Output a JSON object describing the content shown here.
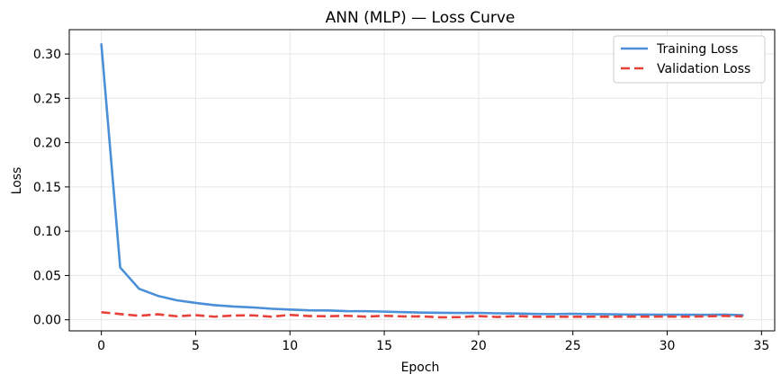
{
  "chart_data": {
    "type": "line",
    "title": "ANN (MLP) — Loss Curve",
    "xlabel": "Epoch",
    "ylabel": "Loss",
    "xlim": [
      -1.7,
      35.7
    ],
    "ylim": [
      -0.0125,
      0.3275
    ],
    "x_ticks": [
      0,
      5,
      10,
      15,
      20,
      25,
      30,
      35
    ],
    "y_ticks": [
      0.0,
      0.05,
      0.1,
      0.15,
      0.2,
      0.25,
      0.3
    ],
    "y_tick_labels": [
      "0.00",
      "0.05",
      "0.10",
      "0.15",
      "0.20",
      "0.25",
      "0.30"
    ],
    "grid": true,
    "legend_position": "top-right",
    "x": [
      0,
      1,
      2,
      3,
      4,
      5,
      6,
      7,
      8,
      9,
      10,
      11,
      12,
      13,
      14,
      15,
      16,
      17,
      18,
      19,
      20,
      21,
      22,
      23,
      24,
      25,
      26,
      27,
      28,
      29,
      30,
      31,
      32,
      33,
      34
    ],
    "series": [
      {
        "name": "Training Loss",
        "color": "#4a8fd8",
        "style": "solid",
        "values": [
          0.311,
          0.059,
          0.035,
          0.027,
          0.022,
          0.019,
          0.0165,
          0.015,
          0.014,
          0.0125,
          0.0115,
          0.0107,
          0.0105,
          0.0098,
          0.0097,
          0.0092,
          0.0086,
          0.0081,
          0.0079,
          0.0077,
          0.0078,
          0.0073,
          0.0071,
          0.0066,
          0.0064,
          0.0067,
          0.0063,
          0.0062,
          0.0059,
          0.0058,
          0.0057,
          0.0057,
          0.0056,
          0.0058,
          0.0052
        ]
      },
      {
        "name": "Validation Loss",
        "color": "#e8413a",
        "style": "dashed",
        "values": [
          0.0085,
          0.0065,
          0.0045,
          0.0062,
          0.004,
          0.0052,
          0.0035,
          0.0048,
          0.005,
          0.0035,
          0.0055,
          0.0042,
          0.004,
          0.0045,
          0.0036,
          0.0045,
          0.0038,
          0.0038,
          0.0028,
          0.003,
          0.0042,
          0.0032,
          0.0042,
          0.0034,
          0.0035,
          0.0034,
          0.0035,
          0.0034,
          0.0036,
          0.0035,
          0.0037,
          0.0035,
          0.0038,
          0.0044,
          0.0038
        ]
      }
    ]
  }
}
